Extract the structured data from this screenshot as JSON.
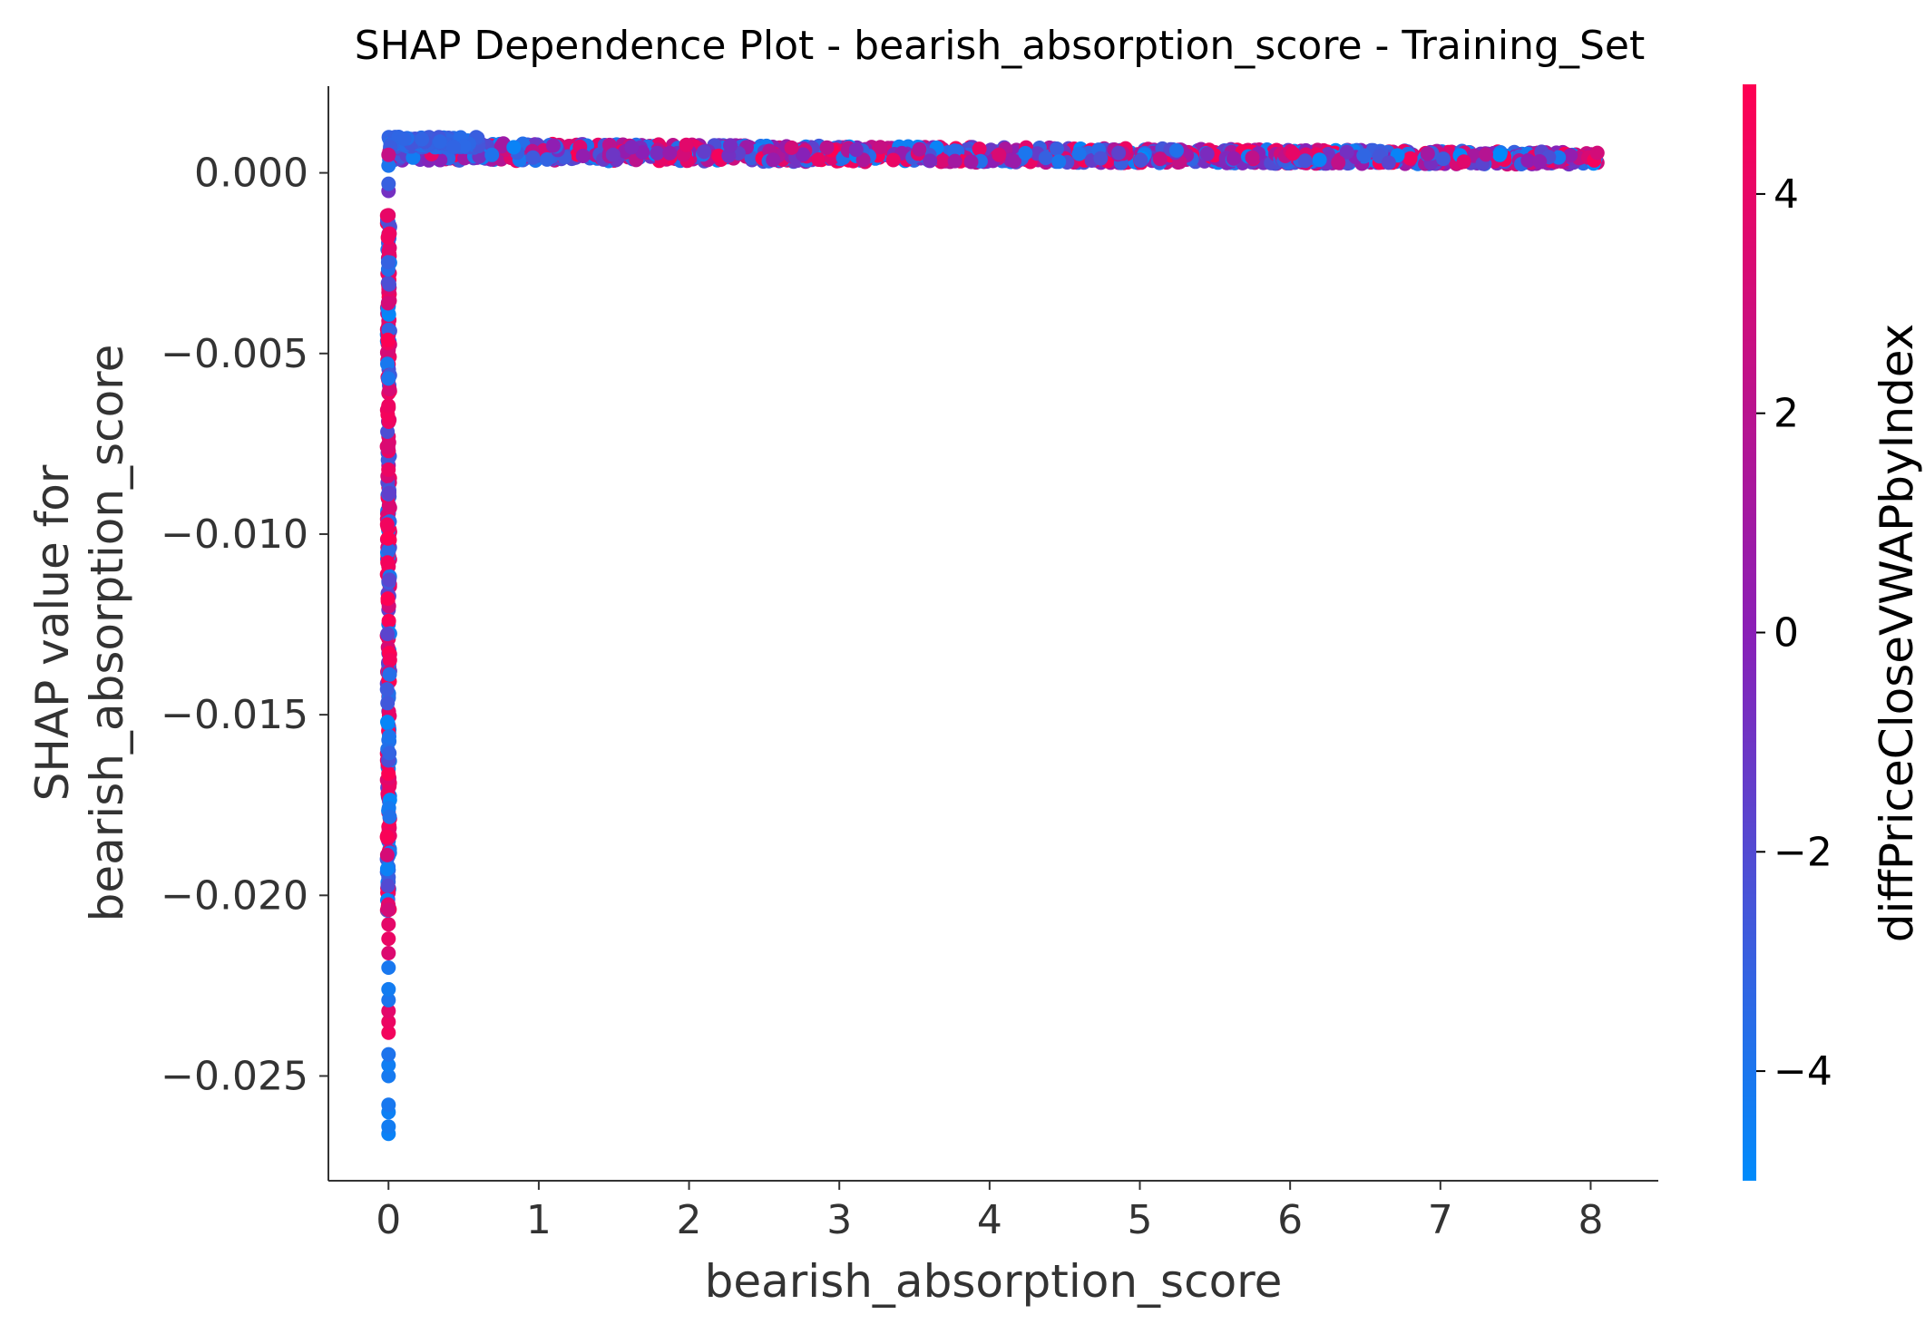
{
  "chart_data": {
    "type": "scatter",
    "title": "SHAP Dependence Plot - bearish_absorption_score - Training_Set",
    "xlabel": "bearish_absorption_score",
    "ylabel_lines": [
      "SHAP value for",
      "bearish_absorption_score"
    ],
    "xlim": [
      -0.4,
      8.45
    ],
    "ylim": [
      -0.0279,
      0.0024
    ],
    "x_ticks": [
      0,
      1,
      2,
      3,
      4,
      5,
      6,
      7,
      8
    ],
    "x_tick_labels": [
      "0",
      "1",
      "2",
      "3",
      "4",
      "5",
      "6",
      "7",
      "8"
    ],
    "y_ticks": [
      0.0,
      -0.005,
      -0.01,
      -0.015,
      -0.02,
      -0.025
    ],
    "y_tick_labels": [
      "0.000",
      "−0.005",
      "−0.010",
      "−0.015",
      "−0.020",
      "−0.025"
    ],
    "grid": false,
    "colorbar": {
      "label": "diffPriceCloseVWAPbyIndex",
      "range": [
        -5,
        5
      ],
      "ticks": [
        4,
        2,
        0,
        -2,
        -4
      ],
      "tick_labels": [
        "4",
        "2",
        "0",
        "−2",
        "−4"
      ],
      "color_low": "#008bfb",
      "color_mid": "#8a1fb7",
      "color_high": "#ff0052"
    },
    "series": [
      {
        "points": [
          [
            0.0,
            -0.0266,
            -4.6
          ],
          [
            0.0,
            -0.0264,
            -4.3
          ],
          [
            0.0,
            -0.026,
            -4.5
          ],
          [
            0.0,
            -0.0258,
            -4.1
          ],
          [
            0.0,
            -0.025,
            -4.2
          ],
          [
            0.0,
            -0.0247,
            -4.4
          ],
          [
            0.0,
            -0.0244,
            -3.9
          ],
          [
            0.0,
            -0.0238,
            4.5
          ],
          [
            0.0,
            -0.0235,
            4.2
          ],
          [
            0.0,
            -0.0232,
            3.8
          ],
          [
            0.0,
            -0.0229,
            -4.0
          ],
          [
            0.0,
            -0.0226,
            -4.3
          ],
          [
            0.0,
            -0.022,
            -4.1
          ],
          [
            0.0,
            -0.0216,
            3.5
          ],
          [
            0.0,
            -0.0212,
            4.1
          ],
          [
            0.0,
            -0.0208,
            3.9
          ],
          [
            0.0,
            -0.0203,
            -3.8
          ],
          [
            0.0,
            -0.0198,
            -4.2
          ],
          [
            0.0,
            -0.0193,
            -3.6
          ],
          [
            0.0,
            -0.0189,
            -4.5
          ],
          [
            0.0,
            -0.0185,
            -4.0
          ],
          [
            0.0,
            -0.0181,
            4.4
          ],
          [
            0.0,
            -0.0177,
            3.6
          ],
          [
            0.0,
            -0.0173,
            -3.9
          ],
          [
            0.0,
            -0.0169,
            4.0
          ],
          [
            0.0,
            -0.0165,
            -4.1
          ],
          [
            0.0,
            -0.0161,
            3.7
          ],
          [
            0.0,
            -0.0157,
            -3.5
          ],
          [
            0.0,
            -0.0153,
            4.3
          ],
          [
            0.0,
            -0.0149,
            -4.4
          ],
          [
            0.0,
            -0.0145,
            3.9
          ],
          [
            0.0,
            -0.0141,
            -3.2
          ],
          [
            0.0,
            -0.0137,
            4.1
          ],
          [
            0.0,
            -0.0133,
            -2.0
          ],
          [
            0.0,
            -0.0129,
            4.5
          ],
          [
            0.0,
            -0.0125,
            -4.0
          ],
          [
            0.0,
            -0.0121,
            -1.5
          ],
          [
            0.0,
            -0.0117,
            3.5
          ],
          [
            0.0,
            -0.0113,
            -3.8
          ],
          [
            0.0,
            -0.0109,
            4.2
          ],
          [
            0.0,
            -0.0105,
            2.0
          ],
          [
            0.0,
            -0.0101,
            -0.5
          ],
          [
            0.0,
            -0.0097,
            4.0
          ],
          [
            0.0,
            -0.0093,
            3.3
          ],
          [
            0.0,
            -0.0089,
            -4.2
          ],
          [
            0.0,
            -0.0085,
            4.4
          ],
          [
            0.0,
            -0.0081,
            1.0
          ],
          [
            0.0,
            -0.0077,
            -3.6
          ],
          [
            0.0,
            -0.0073,
            3.9
          ],
          [
            0.0,
            -0.0069,
            -2.5
          ],
          [
            0.0,
            -0.0065,
            4.1
          ],
          [
            0.0,
            -0.0061,
            3.7
          ],
          [
            0.0,
            -0.0057,
            -4.0
          ],
          [
            0.0,
            -0.0053,
            4.3
          ],
          [
            0.0,
            -0.0049,
            3.5
          ],
          [
            0.0,
            -0.0045,
            4.0
          ],
          [
            0.0,
            -0.0041,
            3.8
          ],
          [
            0.0,
            -0.0037,
            -4.1
          ],
          [
            0.0,
            -0.0025,
            -4.3
          ],
          [
            0.0,
            -0.0021,
            -4.0
          ],
          [
            0.0,
            -0.0017,
            -1.8
          ],
          [
            0.0,
            -0.0005,
            -0.8
          ],
          [
            0.0,
            -0.0003,
            -3.0
          ],
          [
            0.0,
            0.0002,
            -4.0
          ],
          [
            0.0,
            0.0005,
            2.5
          ]
        ]
      }
    ],
    "band": {
      "description_free": true,
      "x_range": [
        0.0,
        8.05
      ],
      "y_center_start": 0.0006,
      "y_center_end": 0.0004,
      "y_spread": 0.0005
    }
  }
}
